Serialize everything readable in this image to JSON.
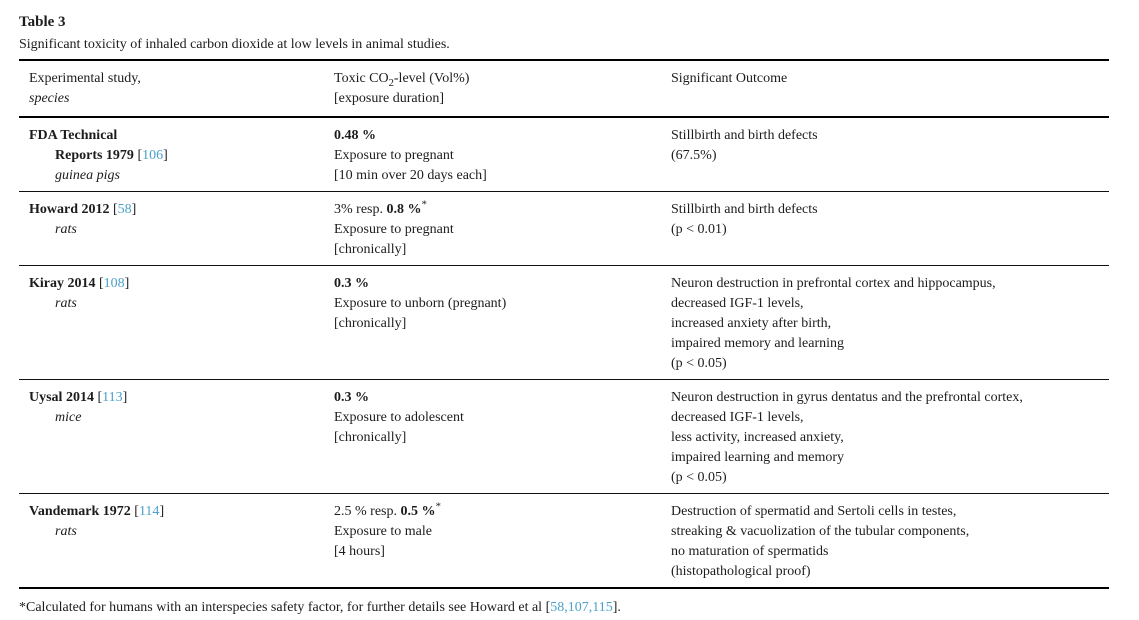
{
  "title": "Table 3",
  "caption": "Significant toxicity of inhaled carbon dioxide at low levels in animal studies.",
  "colors": {
    "text": "#1c1c1c",
    "citation": "#4aa2c9",
    "rule": "#000000",
    "background": "#ffffff"
  },
  "brackets": {
    "open": "[",
    "close": "]"
  },
  "header": {
    "col1_line1": "Experimental study,",
    "col1_line2": "species",
    "col2_pre": "Toxic CO",
    "col2_sub": "2",
    "col2_post": "-level (Vol%)",
    "col2_line2": "[exposure duration]",
    "col3": "Significant Outcome"
  },
  "table": {
    "rows": [
      {
        "study_line1": "FDA Technical",
        "study_line2": "Reports 1979",
        "ref": "106",
        "ref_on_line2": true,
        "species": "guinea pigs",
        "level_prefix": "",
        "level_bold": "0.48 %",
        "level_star": "",
        "exposure": "Exposure to pregnant",
        "duration": "[10 min over 20 days each]",
        "outcome": [
          "Stillbirth and birth defects",
          "(67.5%)"
        ]
      },
      {
        "study_line1": "Howard 2012",
        "study_line2": "",
        "ref": "58",
        "ref_on_line2": false,
        "species": "rats",
        "level_prefix": "3% resp. ",
        "level_bold": "0.8 %",
        "level_star": "*",
        "exposure": "Exposure to pregnant",
        "duration": "[chronically]",
        "outcome": [
          "Stillbirth and birth defects",
          "(p < 0.01)"
        ]
      },
      {
        "study_line1": "Kiray 2014",
        "study_line2": "",
        "ref": "108",
        "ref_on_line2": false,
        "species": "rats",
        "level_prefix": "",
        "level_bold": "0.3 %",
        "level_star": "",
        "exposure": "Exposure to unborn (pregnant)",
        "duration": "[chronically]",
        "outcome": [
          "Neuron destruction in prefrontal cortex and hippocampus,",
          "decreased IGF-1 levels,",
          "increased anxiety after birth,",
          "impaired memory and learning",
          "(p < 0.05)"
        ]
      },
      {
        "study_line1": "Uysal 2014",
        "study_line2": "",
        "ref": "113",
        "ref_on_line2": false,
        "species": "mice",
        "level_prefix": "",
        "level_bold": "0.3 %",
        "level_star": "",
        "exposure": "Exposure to adolescent",
        "duration": "[chronically]",
        "outcome": [
          "Neuron destruction in gyrus dentatus and the prefrontal cortex,",
          "decreased IGF-1 levels,",
          "less activity, increased anxiety,",
          "impaired learning and memory",
          "(p < 0.05)"
        ]
      },
      {
        "study_line1": "Vandemark 1972",
        "study_line2": "",
        "ref": "114",
        "ref_on_line2": false,
        "species": "rats",
        "level_prefix": "2.5 % resp. ",
        "level_bold": "0.5 %",
        "level_star": "*",
        "exposure": "Exposure to male",
        "duration": "[4 hours]",
        "outcome": [
          "Destruction of spermatid and Sertoli cells in testes,",
          "streaking & vacuolization of the tubular components,",
          "no maturation of spermatids",
          "(histopathological proof)"
        ]
      }
    ]
  },
  "footnote": {
    "prefix": "*Calculated for humans with an interspecies safety factor, for further details see Howard et al [",
    "refs": "58,107,115",
    "suffix": "]."
  }
}
